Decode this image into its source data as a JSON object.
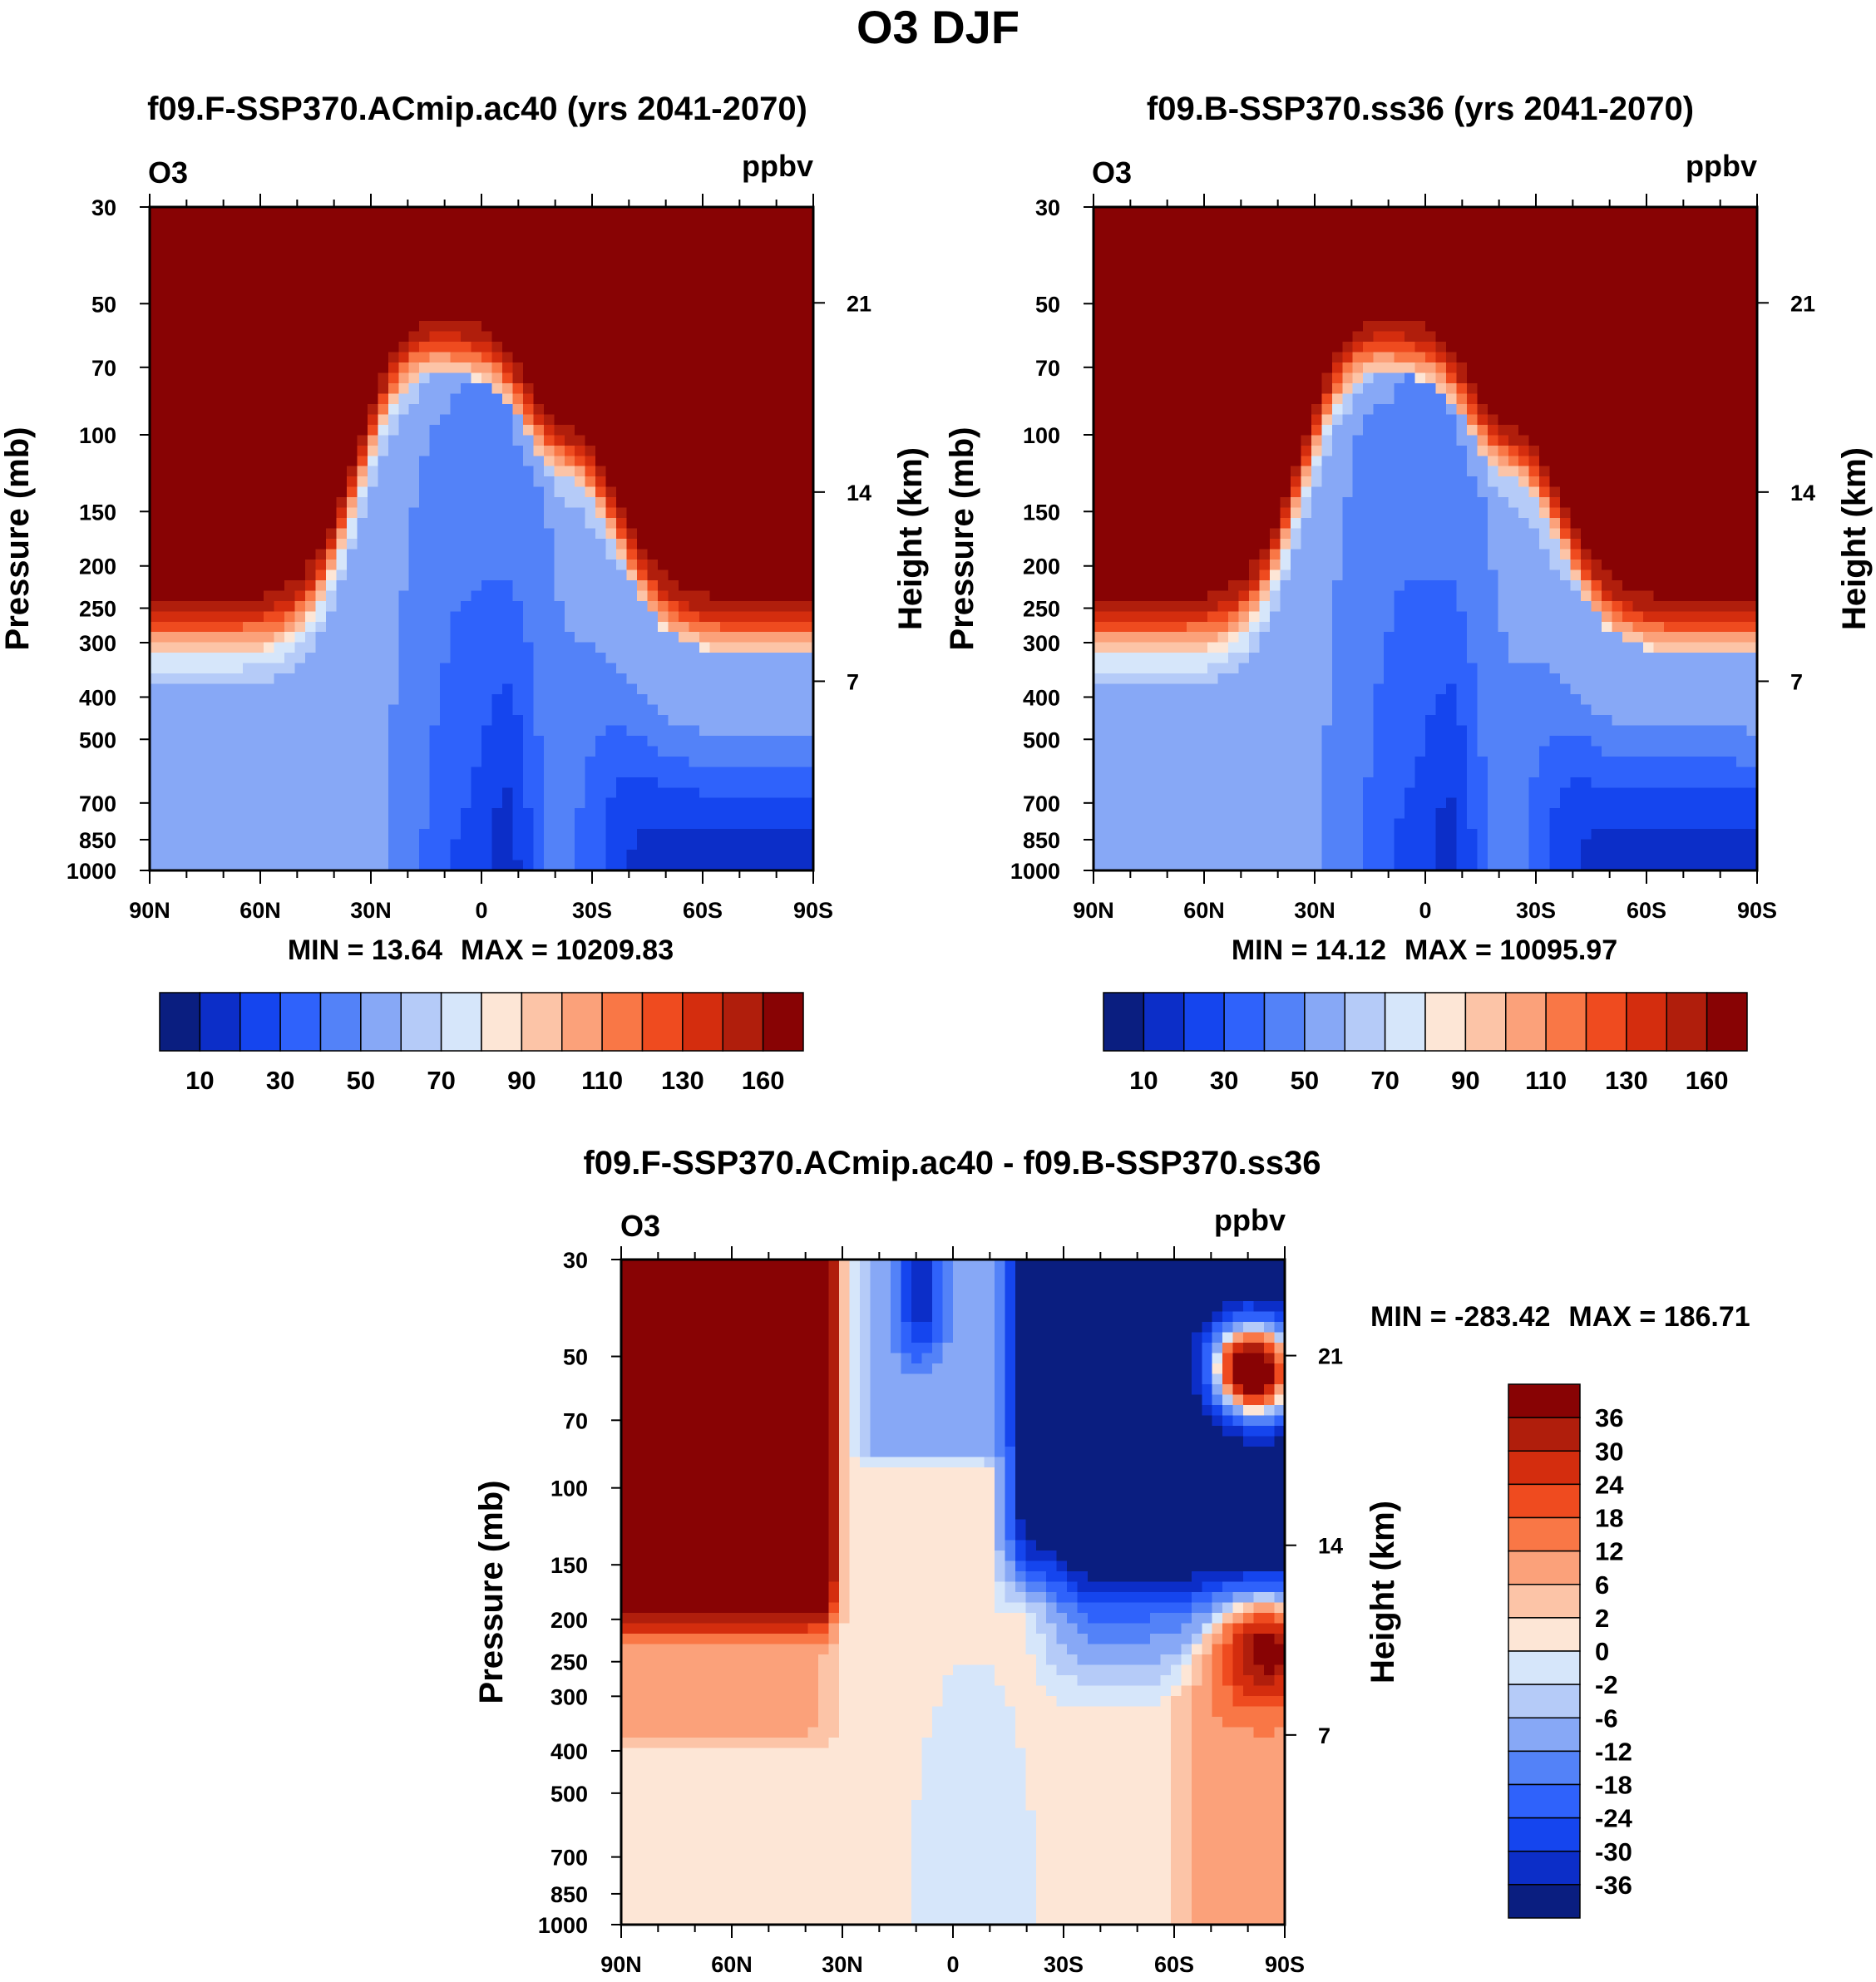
{
  "figure_title": "O3 DJF",
  "chart_data": [
    {
      "type": "heatmap",
      "title": "f09.F-SSP370.ACmip.ac40 (yrs 2041-2070)",
      "left_string": "O3",
      "right_string": "ppbv",
      "xlabel": "",
      "ylabel": "Pressure (mb)",
      "ylabel_right": "Height (km)",
      "x_ticks": [
        "90N",
        "60N",
        "30N",
        "0",
        "30S",
        "60S",
        "90S"
      ],
      "y_ticks": [
        "30",
        "50",
        "70",
        "100",
        "150",
        "200",
        "250",
        "300",
        "400",
        "500",
        "700",
        "850",
        "1000"
      ],
      "height_ticks": [
        "21",
        "14",
        "7"
      ],
      "min_label": "MIN =  13.64",
      "max_label": "MAX = 10209.83",
      "colorbar_labels": [
        "10",
        "30",
        "50",
        "70",
        "90",
        "110",
        "130",
        "160"
      ],
      "colors": [
        "#0a1e80",
        "#0c2ec8",
        "#1545ee",
        "#2f62fb",
        "#5382f8",
        "#87a8f6",
        "#b5cbf8",
        "#d6e6fa",
        "#fde6d6",
        "#fcc4a7",
        "#fba17a",
        "#f97746",
        "#ef4b1f",
        "#d42d0e",
        "#b01e0c",
        "#880304"
      ],
      "field": "ozone",
      "variant": 0
    },
    {
      "type": "heatmap",
      "title": "f09.B-SSP370.ss36 (yrs 2041-2070)",
      "left_string": "O3",
      "right_string": "ppbv",
      "xlabel": "",
      "ylabel": "Pressure (mb)",
      "ylabel_right": "Height (km)",
      "x_ticks": [
        "90N",
        "60N",
        "30N",
        "0",
        "30S",
        "60S",
        "90S"
      ],
      "y_ticks": [
        "30",
        "50",
        "70",
        "100",
        "150",
        "200",
        "250",
        "300",
        "400",
        "500",
        "700",
        "850",
        "1000"
      ],
      "height_ticks": [
        "21",
        "14",
        "7"
      ],
      "min_label": "MIN =  14.12",
      "max_label": "MAX = 10095.97",
      "colorbar_labels": [
        "10",
        "30",
        "50",
        "70",
        "90",
        "110",
        "130",
        "160"
      ],
      "colors": [
        "#0a1e80",
        "#0c2ec8",
        "#1545ee",
        "#2f62fb",
        "#5382f8",
        "#87a8f6",
        "#b5cbf8",
        "#d6e6fa",
        "#fde6d6",
        "#fcc4a7",
        "#fba17a",
        "#f97746",
        "#ef4b1f",
        "#d42d0e",
        "#b01e0c",
        "#880304"
      ],
      "field": "ozone",
      "variant": 1
    },
    {
      "type": "heatmap",
      "title": "f09.F-SSP370.ACmip.ac40 - f09.B-SSP370.ss36",
      "left_string": "O3",
      "right_string": "ppbv",
      "xlabel": "",
      "ylabel": "Pressure (mb)",
      "ylabel_right": "Height (km)",
      "x_ticks": [
        "90N",
        "60N",
        "30N",
        "0",
        "30S",
        "60S",
        "90S"
      ],
      "y_ticks": [
        "30",
        "50",
        "70",
        "100",
        "150",
        "200",
        "250",
        "300",
        "400",
        "500",
        "700",
        "850",
        "1000"
      ],
      "height_ticks": [
        "21",
        "14",
        "7"
      ],
      "min_label": "MIN = -283.42",
      "max_label": "MAX = 186.71",
      "colorbar_labels": [
        "36",
        "30",
        "24",
        "18",
        "12",
        "6",
        "2",
        "0",
        "-2",
        "-6",
        "-12",
        "-18",
        "-24",
        "-30",
        "-36"
      ],
      "colors": [
        "#880304",
        "#b01e0c",
        "#d42d0e",
        "#ef4b1f",
        "#f97746",
        "#fba17a",
        "#fcc4a7",
        "#fde6d6",
        "#d6e6fa",
        "#b5cbf8",
        "#87a8f6",
        "#5382f8",
        "#2f62fb",
        "#1545ee",
        "#0c2ec8",
        "#0a1e80"
      ],
      "field": "difference",
      "variant": 0
    }
  ]
}
